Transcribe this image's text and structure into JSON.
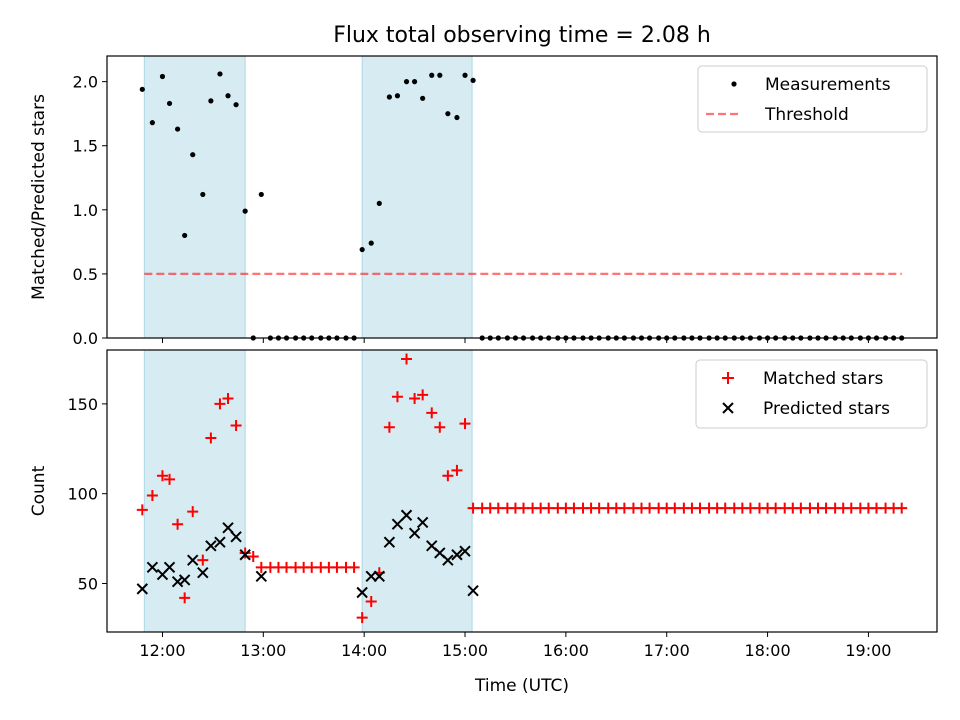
{
  "title": "Flux total observing time = 2.08 h",
  "xlabel": "Time (UTC)",
  "x_ticks": [
    "12:00",
    "13:00",
    "14:00",
    "15:00",
    "16:00",
    "17:00",
    "18:00",
    "19:00"
  ],
  "colors": {
    "shade": "#add8e6",
    "measurement": "#000000",
    "threshold": "#ff0000",
    "matched": "#ff0000",
    "predicted": "#000000"
  },
  "chart_data": [
    {
      "type": "scatter",
      "ylabel": "Matched/Predicted stars",
      "xlim": [
        11.45,
        19.68
      ],
      "ylim": [
        0,
        2.2
      ],
      "y_ticks": [
        0.0,
        0.5,
        1.0,
        1.5,
        2.0
      ],
      "shaded_intervals": [
        [
          11.82,
          12.82
        ],
        [
          13.98,
          15.07
        ]
      ],
      "legend_position": "top-right",
      "series": [
        {
          "name": "Measurements",
          "marker": "dot",
          "x": [
            11.8,
            11.9,
            12.0,
            12.07,
            12.15,
            12.22,
            12.3,
            12.4,
            12.48,
            12.57,
            12.65,
            12.73,
            12.82,
            12.9,
            12.98,
            13.07,
            13.15,
            13.23,
            13.32,
            13.4,
            13.48,
            13.57,
            13.65,
            13.73,
            13.82,
            13.9,
            13.98,
            14.07,
            14.15,
            14.25,
            14.33,
            14.42,
            14.5,
            14.58,
            14.67,
            14.75,
            14.83,
            14.92,
            15.0,
            15.08,
            15.17,
            15.25,
            15.33,
            15.42,
            15.5,
            15.58,
            15.67,
            15.75,
            15.83,
            15.92,
            16.0,
            16.08,
            16.17,
            16.25,
            16.33,
            16.42,
            16.5,
            16.58,
            16.67,
            16.75,
            16.83,
            16.92,
            17.0,
            17.08,
            17.17,
            17.25,
            17.33,
            17.42,
            17.5,
            17.58,
            17.67,
            17.75,
            17.83,
            17.92,
            18.0,
            18.08,
            18.17,
            18.25,
            18.33,
            18.42,
            18.5,
            18.58,
            18.67,
            18.75,
            18.83,
            18.92,
            19.0,
            19.08,
            19.17,
            19.25,
            19.33
          ],
          "y": [
            1.94,
            1.68,
            2.04,
            1.83,
            1.63,
            0.8,
            1.43,
            1.12,
            1.85,
            2.06,
            1.89,
            1.82,
            0.99,
            0.0,
            1.12,
            0.0,
            0.0,
            0.0,
            0.0,
            0.0,
            0.0,
            0.0,
            0.0,
            0.0,
            0.0,
            0.0,
            0.69,
            0.74,
            1.05,
            1.88,
            1.89,
            2.0,
            2.0,
            1.87,
            2.05,
            2.05,
            1.75,
            1.72,
            2.05,
            2.01,
            0.0,
            0.0,
            0.0,
            0.0,
            0.0,
            0.0,
            0.0,
            0.0,
            0.0,
            0.0,
            0.0,
            0.0,
            0.0,
            0.0,
            0.0,
            0.0,
            0.0,
            0.0,
            0.0,
            0.0,
            0.0,
            0.0,
            0.0,
            0.0,
            0.0,
            0.0,
            0.0,
            0.0,
            0.0,
            0.0,
            0.0,
            0.0,
            0.0,
            0.0,
            0.0,
            0.0,
            0.0,
            0.0,
            0.0,
            0.0,
            0.0,
            0.0,
            0.0,
            0.0,
            0.0,
            0.0,
            0.0,
            0.0,
            0.0,
            0.0,
            0.0
          ]
        },
        {
          "name": "Threshold",
          "marker": "dashed-line",
          "x": [
            11.82,
            19.33
          ],
          "y": [
            0.5,
            0.5
          ]
        }
      ]
    },
    {
      "type": "scatter",
      "ylabel": "Count",
      "xlim": [
        11.45,
        19.68
      ],
      "ylim": [
        23,
        180
      ],
      "y_ticks": [
        50,
        100,
        150
      ],
      "shaded_intervals": [
        [
          11.82,
          12.82
        ],
        [
          13.98,
          15.07
        ]
      ],
      "legend_position": "top-right",
      "series": [
        {
          "name": "Matched stars",
          "marker": "plus",
          "x": [
            11.8,
            11.9,
            12.0,
            12.07,
            12.15,
            12.22,
            12.3,
            12.4,
            12.48,
            12.57,
            12.65,
            12.73,
            12.82,
            12.9,
            12.98,
            13.07,
            13.15,
            13.23,
            13.32,
            13.4,
            13.48,
            13.57,
            13.65,
            13.73,
            13.82,
            13.9,
            13.98,
            14.07,
            14.15,
            14.25,
            14.33,
            14.42,
            14.5,
            14.58,
            14.67,
            14.75,
            14.83,
            14.92,
            15.0,
            15.08,
            15.17,
            15.25,
            15.33,
            15.42,
            15.5,
            15.58,
            15.67,
            15.75,
            15.83,
            15.92,
            16.0,
            16.08,
            16.17,
            16.25,
            16.33,
            16.42,
            16.5,
            16.58,
            16.67,
            16.75,
            16.83,
            16.92,
            17.0,
            17.08,
            17.17,
            17.25,
            17.33,
            17.42,
            17.5,
            17.58,
            17.67,
            17.75,
            17.83,
            17.92,
            18.0,
            18.08,
            18.17,
            18.25,
            18.33,
            18.42,
            18.5,
            18.58,
            18.67,
            18.75,
            18.83,
            18.92,
            19.0,
            19.08,
            19.17,
            19.25,
            19.33
          ],
          "y": [
            91,
            99,
            110,
            108,
            83,
            42,
            90,
            63,
            131,
            150,
            153,
            138,
            67,
            65,
            59,
            59,
            59,
            59,
            59,
            59,
            59,
            59,
            59,
            59,
            59,
            59,
            31,
            40,
            56,
            137,
            154,
            175,
            153,
            155,
            145,
            137,
            110,
            113,
            139,
            92,
            92,
            92,
            92,
            92,
            92,
            92,
            92,
            92,
            92,
            92,
            92,
            92,
            92,
            92,
            92,
            92,
            92,
            92,
            92,
            92,
            92,
            92,
            92,
            92,
            92,
            92,
            92,
            92,
            92,
            92,
            92,
            92,
            92,
            92,
            92,
            92,
            92,
            92,
            92,
            92,
            92,
            92,
            92,
            92,
            92,
            92,
            92,
            92,
            92,
            92,
            92
          ]
        },
        {
          "name": "Predicted stars",
          "marker": "x",
          "x": [
            11.8,
            11.9,
            12.0,
            12.07,
            12.15,
            12.22,
            12.3,
            12.4,
            12.48,
            12.57,
            12.65,
            12.73,
            12.82,
            12.98,
            13.98,
            14.07,
            14.15,
            14.25,
            14.33,
            14.42,
            14.5,
            14.58,
            14.67,
            14.75,
            14.83,
            14.92,
            15.0,
            15.08
          ],
          "y": [
            47,
            59,
            55,
            59,
            51,
            52,
            63,
            56,
            71,
            73,
            81,
            76,
            66,
            54,
            45,
            54,
            54,
            73,
            83,
            88,
            78,
            84,
            71,
            67,
            63,
            66,
            68,
            46
          ]
        }
      ]
    }
  ]
}
